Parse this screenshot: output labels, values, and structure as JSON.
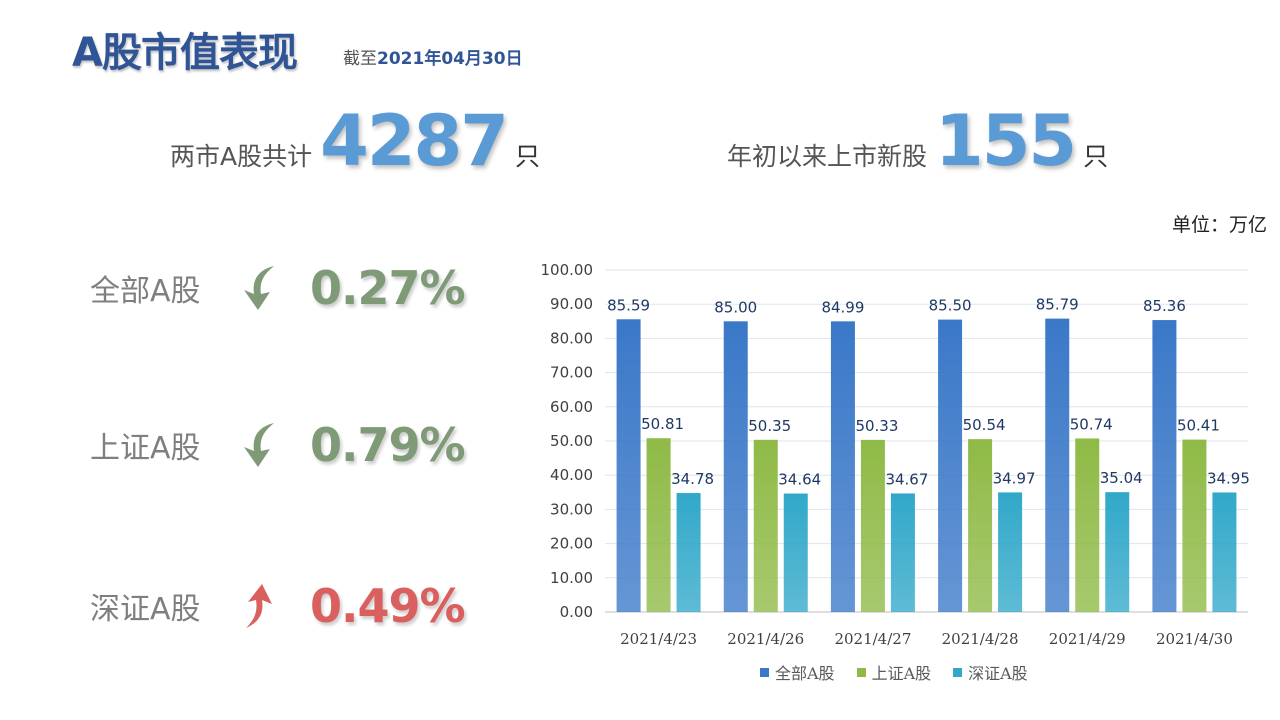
{
  "header": {
    "title": "A股市值表现",
    "as_of_label": "截至",
    "as_of_date": "2021年04月30日"
  },
  "stats": [
    {
      "prefix": "两市A股共计",
      "value": "4287",
      "suffix": "只"
    },
    {
      "prefix": "年初以来上市新股",
      "value": "155",
      "suffix": "只"
    }
  ],
  "unit_label": "单位：万亿",
  "performance": [
    {
      "name": "全部A股",
      "change": "0.27%",
      "direction": "down",
      "icon": "curved-arrow-down-icon",
      "color": "#7f9a77"
    },
    {
      "name": "上证A股",
      "change": "0.79%",
      "direction": "down",
      "icon": "curved-arrow-down-icon",
      "color": "#7f9a77"
    },
    {
      "name": "深证A股",
      "change": "0.49%",
      "direction": "up",
      "icon": "curved-arrow-up-icon",
      "color": "#d9605f"
    }
  ],
  "chart_data": {
    "type": "bar",
    "categories": [
      "2021/4/23",
      "2021/4/26",
      "2021/4/27",
      "2021/4/28",
      "2021/4/29",
      "2021/4/30"
    ],
    "series": [
      {
        "name": "全部A股",
        "values": [
          85.59,
          85.0,
          84.99,
          85.5,
          85.79,
          85.36
        ],
        "color": "#3a78c8"
      },
      {
        "name": "上证A股",
        "values": [
          50.81,
          50.35,
          50.33,
          50.54,
          50.74,
          50.41
        ],
        "color": "#8fba46"
      },
      {
        "name": "深证A股",
        "values": [
          34.78,
          34.64,
          34.67,
          34.97,
          35.04,
          34.95
        ],
        "color": "#31a8c9"
      }
    ],
    "y_ticks": [
      "0.00",
      "10.00",
      "20.00",
      "30.00",
      "40.00",
      "50.00",
      "60.00",
      "70.00",
      "80.00",
      "90.00",
      "100.00"
    ],
    "ylim": [
      0,
      100
    ],
    "grid": true,
    "legend_position": "bottom",
    "data_labels": true
  }
}
